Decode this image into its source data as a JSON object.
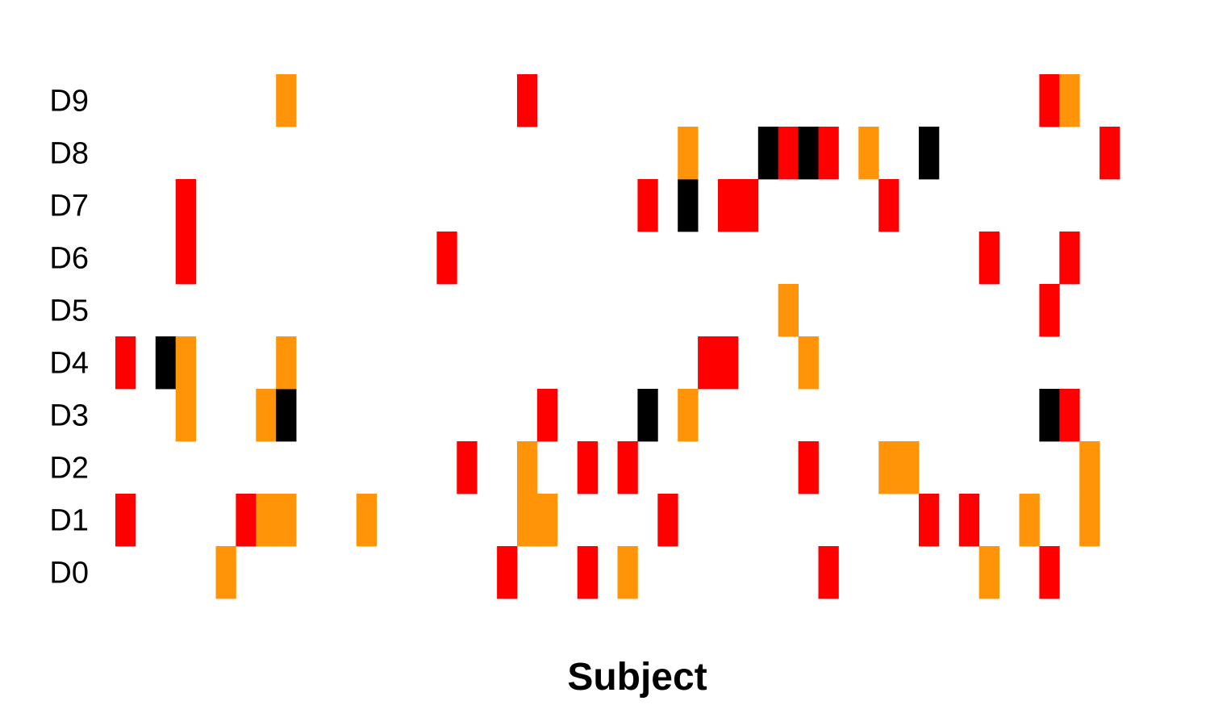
{
  "chart_data": {
    "type": "heatmap",
    "xlabel": "Subject",
    "ylabel": "",
    "rows": [
      "D0",
      "D1",
      "D2",
      "D3",
      "D4",
      "D5",
      "D6",
      "D7",
      "D8",
      "D9"
    ],
    "n_columns": 50,
    "colors": {
      "1": "#ff0000",
      "2": "#ff9408",
      "3": "#000000"
    },
    "cells": {
      "D9": [
        [
          8,
          2
        ],
        [
          20,
          1
        ],
        [
          46,
          1
        ],
        [
          47,
          2
        ]
      ],
      "D8": [
        [
          28,
          2
        ],
        [
          32,
          3
        ],
        [
          33,
          1
        ],
        [
          34,
          3
        ],
        [
          35,
          1
        ],
        [
          37,
          2
        ],
        [
          40,
          3
        ],
        [
          49,
          1
        ]
      ],
      "D7": [
        [
          3,
          1
        ],
        [
          26,
          1
        ],
        [
          28,
          3
        ],
        [
          30,
          1
        ],
        [
          31,
          1
        ],
        [
          38,
          1
        ]
      ],
      "D6": [
        [
          3,
          1
        ],
        [
          16,
          1
        ],
        [
          43,
          1
        ],
        [
          47,
          1
        ]
      ],
      "D5": [
        [
          33,
          2
        ],
        [
          46,
          1
        ]
      ],
      "D4": [
        [
          0,
          1
        ],
        [
          2,
          3
        ],
        [
          3,
          2
        ],
        [
          8,
          2
        ],
        [
          29,
          1
        ],
        [
          30,
          1
        ],
        [
          34,
          2
        ]
      ],
      "D3": [
        [
          3,
          2
        ],
        [
          7,
          2
        ],
        [
          8,
          3
        ],
        [
          21,
          1
        ],
        [
          26,
          3
        ],
        [
          28,
          2
        ],
        [
          46,
          3
        ],
        [
          47,
          1
        ]
      ],
      "D2": [
        [
          17,
          1
        ],
        [
          20,
          2
        ],
        [
          23,
          1
        ],
        [
          25,
          1
        ],
        [
          34,
          1
        ],
        [
          38,
          2
        ],
        [
          39,
          2
        ],
        [
          48,
          2
        ]
      ],
      "D1": [
        [
          0,
          1
        ],
        [
          6,
          1
        ],
        [
          7,
          2
        ],
        [
          8,
          2
        ],
        [
          12,
          2
        ],
        [
          20,
          2
        ],
        [
          21,
          2
        ],
        [
          27,
          1
        ],
        [
          40,
          1
        ],
        [
          42,
          1
        ],
        [
          45,
          2
        ],
        [
          48,
          2
        ]
      ],
      "D0": [
        [
          5,
          2
        ],
        [
          19,
          1
        ],
        [
          23,
          1
        ],
        [
          25,
          2
        ],
        [
          35,
          1
        ],
        [
          43,
          2
        ],
        [
          46,
          1
        ]
      ]
    }
  }
}
